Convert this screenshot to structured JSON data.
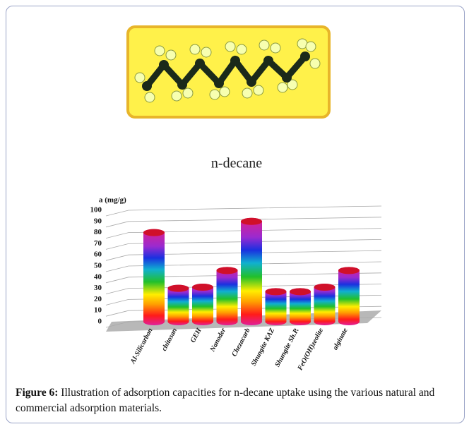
{
  "chart_data": {
    "type": "bar",
    "title": "n-decane",
    "y_label": "a (mg/g)",
    "categories": [
      "Al-Silicarbon",
      "chitosan",
      "GEH",
      "Nanoder",
      "Chezacarb",
      "Shungite KAZ",
      "Shungite Sh.P.",
      "FeO(OH)zeolite",
      "alginate"
    ],
    "values": [
      80,
      30,
      31,
      46,
      90,
      27,
      27,
      31,
      46
    ],
    "ylim": [
      0,
      100
    ],
    "yticks": [
      0,
      10,
      20,
      30,
      40,
      50,
      60,
      70,
      80,
      90,
      100
    ],
    "grid": true
  },
  "caption": {
    "label": "Figure 6:",
    "text": "Illustration of adsorption capacities for n-decane uptake using the various natural and commercial adsorption materials."
  }
}
